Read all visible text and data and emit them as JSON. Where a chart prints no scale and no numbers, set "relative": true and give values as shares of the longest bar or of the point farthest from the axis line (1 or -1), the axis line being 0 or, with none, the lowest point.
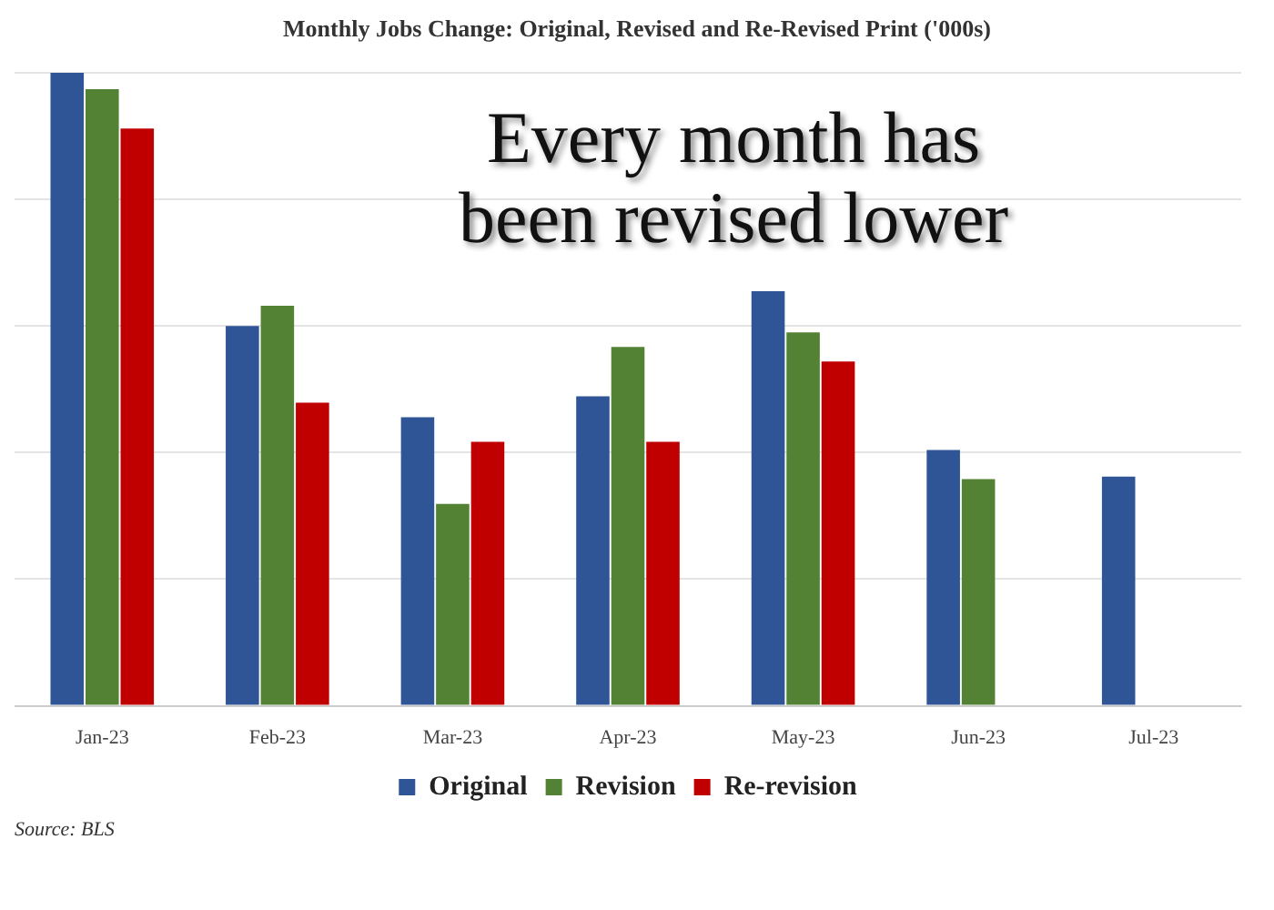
{
  "chart_data": {
    "type": "bar",
    "title": "Monthly Jobs Change: Original, Revised and Re-Revised Print ('000s)",
    "categories": [
      "Jan-23",
      "Feb-23",
      "Mar-23",
      "Apr-23",
      "May-23",
      "Jun-23",
      "Jul-23"
    ],
    "relative": true,
    "series": [
      {
        "name": "Original",
        "color": "#2f5597",
        "values": [
          1.0,
          0.6,
          0.456,
          0.489,
          0.655,
          0.404,
          0.362
        ]
      },
      {
        "name": "Revision",
        "color": "#548235",
        "values": [
          0.974,
          0.632,
          0.319,
          0.567,
          0.59,
          0.358,
          null
        ]
      },
      {
        "name": "Re-revision",
        "color": "#c00000",
        "values": [
          0.912,
          0.479,
          0.417,
          0.417,
          0.544,
          null,
          null
        ]
      }
    ],
    "grid": "y",
    "legend": "bottom",
    "annotations": [
      "Every month has been revised lower",
      "Source: BLS"
    ]
  }
}
